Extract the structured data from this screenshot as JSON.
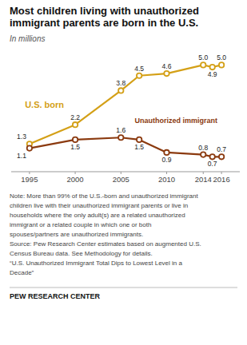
{
  "chart_data": {
    "type": "line",
    "title": "Most children living with unauthorized\nimmigrant parents are born in the U.S.",
    "subtitle": "In millions",
    "x": [
      1995,
      2000,
      2005,
      2007,
      2010,
      2014,
      2015,
      2016
    ],
    "series": [
      {
        "name": "U.S. born",
        "color": "#D4A017",
        "marker": "circle",
        "values": [
          1.3,
          2.2,
          3.8,
          4.5,
          4.6,
          5.0,
          4.9,
          5.0
        ],
        "value_labels": [
          "1.3",
          "2.2",
          "3.8",
          "4.5",
          "4.6",
          "5.0",
          "4.9",
          "5.0"
        ]
      },
      {
        "name": "Unauthorized immigrant",
        "color": "#8B3A0F",
        "marker": "circle",
        "values": [
          1.1,
          1.5,
          1.6,
          1.5,
          0.9,
          0.8,
          0.7,
          0.7
        ]
      }
    ],
    "xlim": [
      1993,
      2018
    ],
    "xticks": [
      1995,
      2000,
      2005,
      2010,
      2014,
      2016
    ],
    "ylim": [
      0,
      5.8
    ],
    "tick_labels": "x",
    "grid": false,
    "data_labels": true,
    "annotations": [
      "Note: More than 99% of the U.S.-born and unauthorized immigrant",
      "children live with their unauthorized immigrant parents or live in",
      "households where the only adult(s) are a related unauthorized",
      "immigrant or a related couple in which one or both",
      "spouses/partners are unauthorized immigrants.",
      "Source: Pew Research Center estimates based on augmented U.S.",
      "Census Bureau data. See Methodology for details.",
      "“U.S. Unauthorized Immigrant Total Dips to Lowest Level in a",
      "Decade”"
    ],
    "footer": "PEW RESEARCH CENTER"
  }
}
